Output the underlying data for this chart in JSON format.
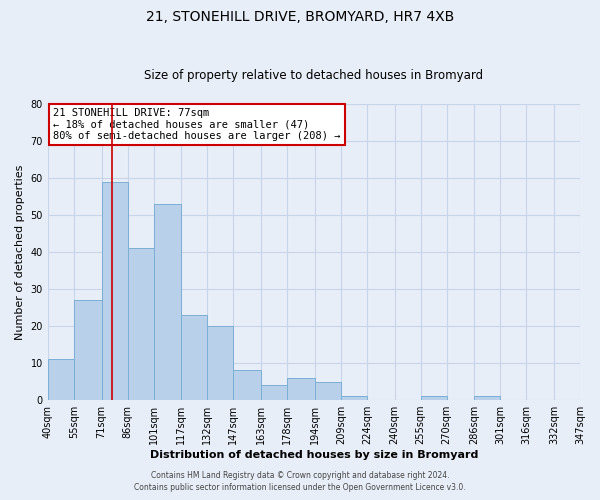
{
  "title": "21, STONEHILL DRIVE, BROMYARD, HR7 4XB",
  "subtitle": "Size of property relative to detached houses in Bromyard",
  "xlabel": "Distribution of detached houses by size in Bromyard",
  "ylabel": "Number of detached properties",
  "bar_values": [
    11,
    27,
    59,
    41,
    53,
    23,
    20,
    8,
    4,
    6,
    5,
    1,
    0,
    0,
    1,
    0,
    1,
    0,
    0,
    0
  ],
  "bin_edges": [
    40,
    55,
    71,
    86,
    101,
    117,
    132,
    147,
    163,
    178,
    194,
    209,
    224,
    240,
    255,
    270,
    286,
    301,
    316,
    332,
    347
  ],
  "bin_labels": [
    "40sqm",
    "55sqm",
    "71sqm",
    "86sqm",
    "101sqm",
    "117sqm",
    "132sqm",
    "147sqm",
    "163sqm",
    "178sqm",
    "194sqm",
    "209sqm",
    "224sqm",
    "240sqm",
    "255sqm",
    "270sqm",
    "286sqm",
    "301sqm",
    "316sqm",
    "332sqm",
    "347sqm"
  ],
  "bar_color": "#b8d0ea",
  "bar_edge_color": "#7bafd4",
  "grid_color": "#c8d4e8",
  "background_color": "#e8eef8",
  "vline_color": "#cc0000",
  "vline_x": 77,
  "annotation_text": "21 STONEHILL DRIVE: 77sqm\n← 18% of detached houses are smaller (47)\n80% of semi-detached houses are larger (208) →",
  "annotation_box_color": "#ffffff",
  "annotation_box_edge": "#cc0000",
  "ylim": [
    0,
    80
  ],
  "yticks": [
    0,
    10,
    20,
    30,
    40,
    50,
    60,
    70,
    80
  ],
  "title_fontsize": 10,
  "subtitle_fontsize": 8.5,
  "xlabel_fontsize": 8,
  "ylabel_fontsize": 8,
  "tick_fontsize": 7,
  "footer_line1": "Contains HM Land Registry data © Crown copyright and database right 2024.",
  "footer_line2": "Contains public sector information licensed under the Open Government Licence v3.0."
}
